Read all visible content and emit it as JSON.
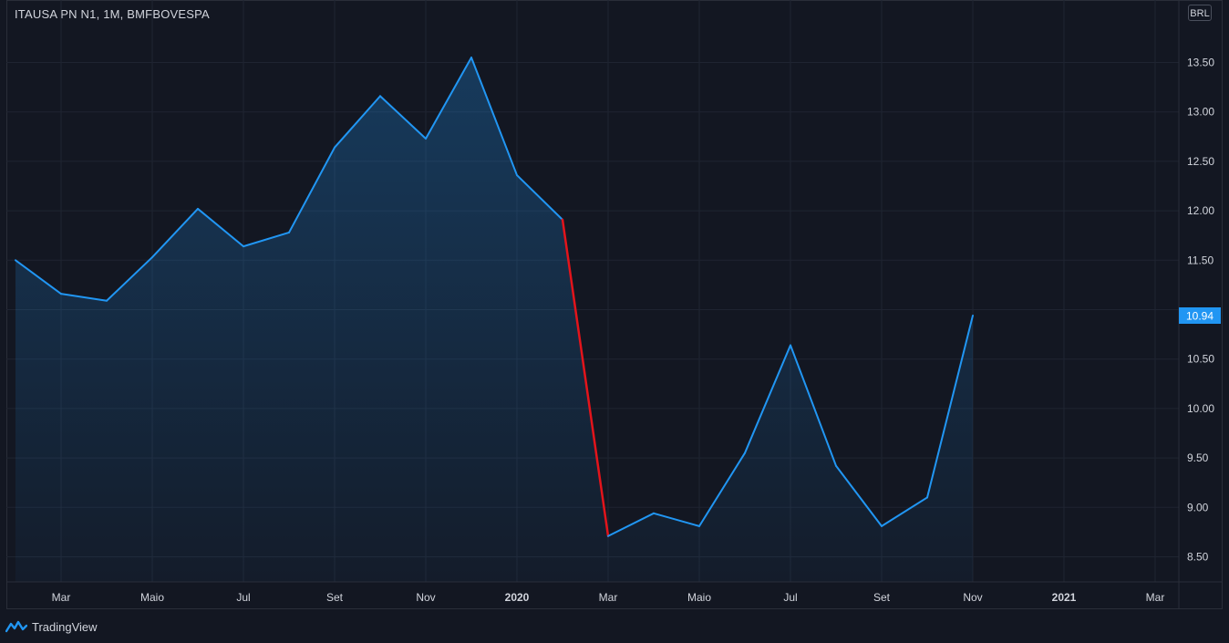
{
  "header": {
    "symbol_title": "ITAUSA PN N1, 1M, BMFBOVESPA",
    "currency": "BRL"
  },
  "last_price_label": "10.94",
  "brand": {
    "name": "TradingView",
    "icon": "tradingview-logo-icon"
  },
  "colors": {
    "background": "#131722",
    "line": "#2196f3",
    "highlight_segment": "#e3141b",
    "grid": "#1f2431",
    "price_badge": "#2196f3"
  },
  "chart_data": {
    "type": "area",
    "title": "ITAUSA PN N1, 1M, BMFBOVESPA",
    "x_unit": "month",
    "x": [
      "2019-02",
      "2019-03",
      "2019-04",
      "2019-05",
      "2019-06",
      "2019-07",
      "2019-08",
      "2019-09",
      "2019-10",
      "2019-11",
      "2019-12",
      "2020-01",
      "2020-02",
      "2020-03",
      "2020-04",
      "2020-05",
      "2020-06",
      "2020-07",
      "2020-08",
      "2020-09",
      "2020-10",
      "2020-11"
    ],
    "series": [
      {
        "values": [
          11.5,
          11.16,
          11.09,
          11.53,
          12.02,
          11.64,
          11.78,
          12.64,
          13.16,
          12.73,
          13.55,
          12.36,
          11.91,
          8.71,
          8.94,
          8.81,
          9.55,
          10.64,
          9.42,
          8.81,
          9.1,
          10.94
        ]
      }
    ],
    "highlight_segment": {
      "from": "2020-02",
      "to": "2020-03"
    },
    "x_tick_labels": [
      {
        "label": "Mar",
        "at": "2019-03",
        "major": false
      },
      {
        "label": "Maio",
        "at": "2019-05",
        "major": false
      },
      {
        "label": "Jul",
        "at": "2019-07",
        "major": false
      },
      {
        "label": "Set",
        "at": "2019-09",
        "major": false
      },
      {
        "label": "Nov",
        "at": "2019-11",
        "major": false
      },
      {
        "label": "2020",
        "at": "2020-01",
        "major": true
      },
      {
        "label": "Mar",
        "at": "2020-03",
        "major": false
      },
      {
        "label": "Maio",
        "at": "2020-05",
        "major": false
      },
      {
        "label": "Jul",
        "at": "2020-07",
        "major": false
      },
      {
        "label": "Set",
        "at": "2020-09",
        "major": false
      },
      {
        "label": "Nov",
        "at": "2020-11",
        "major": false
      },
      {
        "label": "2021",
        "at": "2021-01",
        "major": true
      },
      {
        "label": "Mar",
        "at": "2021-03",
        "major": false
      }
    ],
    "y_tick_labels": [
      "8.50",
      "9.00",
      "9.50",
      "10.00",
      "10.50",
      "11.50",
      "12.00",
      "12.50",
      "13.00",
      "13.50"
    ],
    "y_ticks": [
      8.5,
      9.0,
      9.5,
      10.0,
      10.5,
      11.5,
      12.0,
      12.5,
      13.0,
      13.5
    ],
    "xlim": [
      "2019-02",
      "2021-04"
    ],
    "ylim": [
      8.25,
      13.95
    ],
    "grid": true,
    "y_axis_side": "right"
  }
}
